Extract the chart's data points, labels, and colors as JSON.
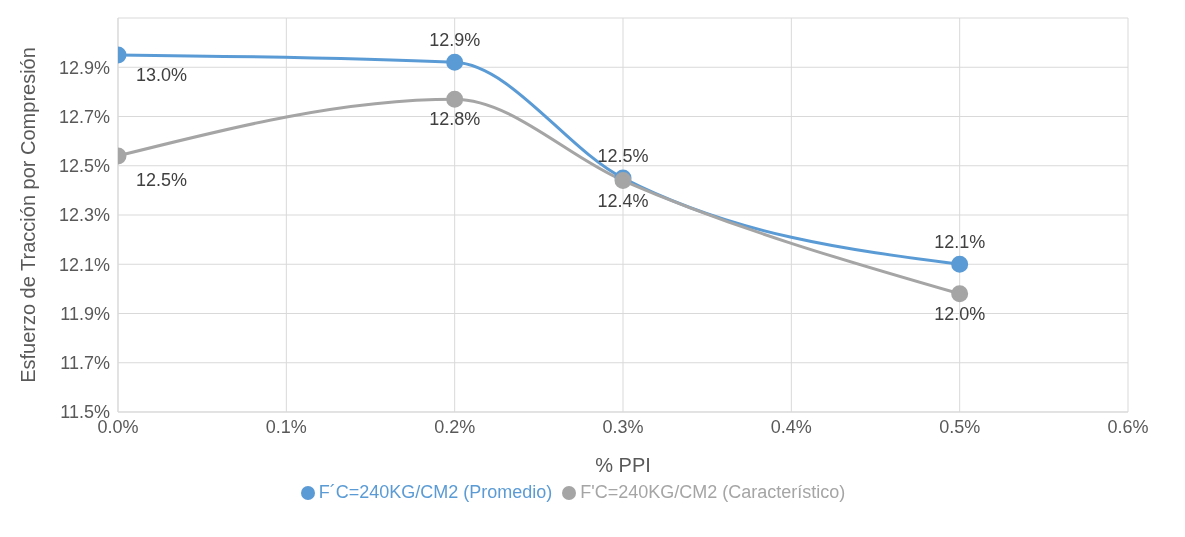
{
  "chart_data": {
    "type": "line",
    "xlabel": "% PPI",
    "ylabel": "Esfuerzo de Tracción por Compresión",
    "x": [
      0,
      0.2,
      0.3,
      0.5
    ],
    "xlim": [
      0,
      0.6
    ],
    "xticks": [
      {
        "value": 0,
        "label": "0.0%"
      },
      {
        "value": 0.1,
        "label": "0.1%"
      },
      {
        "value": 0.2,
        "label": "0.2%"
      },
      {
        "value": 0.3,
        "label": "0.3%"
      },
      {
        "value": 0.4,
        "label": "0.4%"
      },
      {
        "value": 0.5,
        "label": "0.5%"
      },
      {
        "value": 0.6,
        "label": "0.6%"
      }
    ],
    "ylim": [
      11.5,
      13.1
    ],
    "yticks": [
      {
        "value": 11.5,
        "label": "11.5%"
      },
      {
        "value": 11.7,
        "label": "11.7%"
      },
      {
        "value": 11.9,
        "label": "11.9%"
      },
      {
        "value": 12.1,
        "label": "12.1%"
      },
      {
        "value": 12.3,
        "label": "12.3%"
      },
      {
        "value": 12.5,
        "label": "12.5%"
      },
      {
        "value": 12.7,
        "label": "12.7%"
      },
      {
        "value": 12.9,
        "label": "12.9%"
      }
    ],
    "series": [
      {
        "name": "F´C=240KG/CM2 (Promedio)",
        "color": "#5b9bd5",
        "values": [
          12.95,
          12.92,
          12.45,
          12.1
        ],
        "value_labels": [
          "13.0%",
          "12.9%",
          "12.5%",
          "12.1%"
        ]
      },
      {
        "name": "F'C=240KG/CM2 (Característico)",
        "color": "#a5a5a5",
        "values": [
          12.54,
          12.77,
          12.44,
          11.98
        ],
        "value_labels": [
          "12.5%",
          "12.8%",
          "12.4%",
          "12.0%"
        ]
      }
    ],
    "grid": true,
    "legend": "bottom",
    "marker": "circle",
    "line_style": "solid"
  }
}
